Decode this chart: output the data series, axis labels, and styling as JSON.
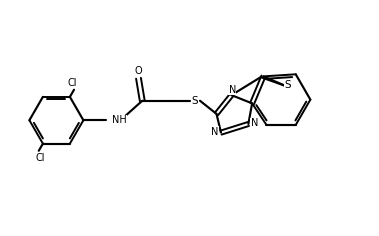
{
  "bg": "#ffffff",
  "lc": "#000000",
  "figsize": [
    3.79,
    2.36
  ],
  "dpi": 100,
  "xlim": [
    0,
    10
  ],
  "ylim": [
    0,
    6.22
  ]
}
